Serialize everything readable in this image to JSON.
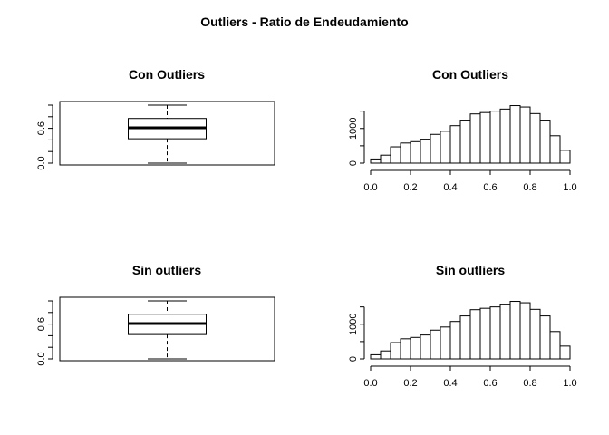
{
  "title": "Outliers - Ratio de Endeudamiento",
  "chart_data": [
    {
      "type": "boxplot",
      "title": "Con Outliers",
      "orientation": "horizontal",
      "ylim": [
        0,
        1
      ],
      "yticks": [
        "0.0",
        "0.6"
      ],
      "stats": {
        "min": 0.0,
        "q1": 0.42,
        "median": 0.61,
        "q3": 0.77,
        "max": 1.0
      }
    },
    {
      "type": "histogram",
      "title": "Con Outliers",
      "breaks": [
        0,
        0.05,
        0.1,
        0.15,
        0.2,
        0.25,
        0.3,
        0.35,
        0.4,
        0.45,
        0.5,
        0.55,
        0.6,
        0.65,
        0.7,
        0.75,
        0.8,
        0.85,
        0.9,
        0.95,
        1.0
      ],
      "counts": [
        120,
        230,
        470,
        580,
        620,
        690,
        830,
        920,
        1080,
        1240,
        1420,
        1460,
        1500,
        1560,
        1660,
        1620,
        1430,
        1240,
        790,
        370
      ],
      "xticks": [
        "0.0",
        "0.2",
        "0.4",
        "0.6",
        "0.8",
        "1.0"
      ],
      "yticks": [
        "0",
        "1000"
      ],
      "ylim": [
        0,
        1700
      ]
    },
    {
      "type": "boxplot",
      "title": "Sin outliers",
      "orientation": "horizontal",
      "ylim": [
        0,
        1
      ],
      "yticks": [
        "0.0",
        "0.6"
      ],
      "stats": {
        "min": 0.0,
        "q1": 0.42,
        "median": 0.61,
        "q3": 0.77,
        "max": 1.0
      }
    },
    {
      "type": "histogram",
      "title": "Sin outliers",
      "breaks": [
        0,
        0.05,
        0.1,
        0.15,
        0.2,
        0.25,
        0.3,
        0.35,
        0.4,
        0.45,
        0.5,
        0.55,
        0.6,
        0.65,
        0.7,
        0.75,
        0.8,
        0.85,
        0.9,
        0.95,
        1.0
      ],
      "counts": [
        120,
        230,
        470,
        580,
        620,
        690,
        830,
        920,
        1080,
        1240,
        1420,
        1460,
        1500,
        1560,
        1660,
        1620,
        1430,
        1240,
        790,
        370
      ],
      "xticks": [
        "0.0",
        "0.2",
        "0.4",
        "0.6",
        "0.8",
        "1.0"
      ],
      "yticks": [
        "0",
        "1000"
      ],
      "ylim": [
        0,
        1700
      ]
    }
  ]
}
